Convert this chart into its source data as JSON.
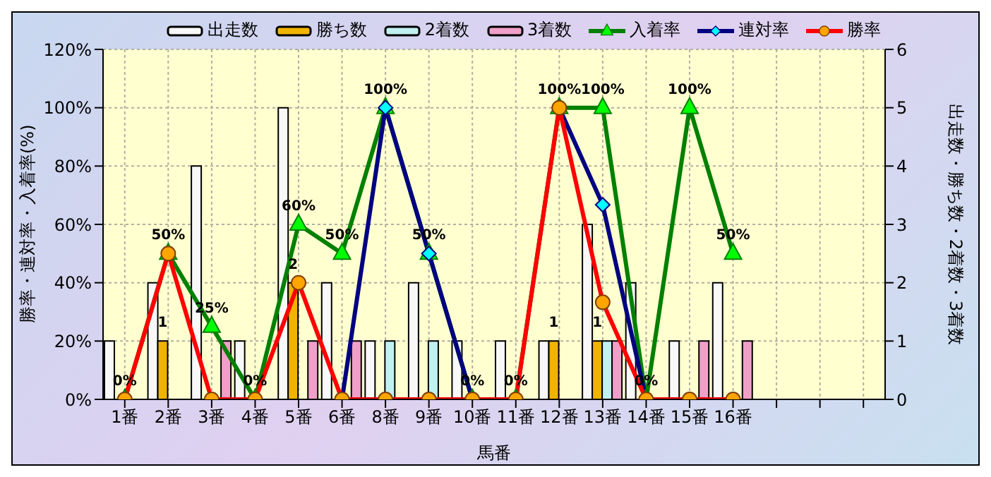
{
  "chart_data": {
    "type": "bar",
    "xlabel": "馬番",
    "ylabel": "勝率・連対率・入着率(%)",
    "y2label": "出走数・勝ち数・2着数・3着数",
    "categories": [
      "1番",
      "2番",
      "3番",
      "4番",
      "5番",
      "6番",
      "8番",
      "9番",
      "10番",
      "11番",
      "12番",
      "13番",
      "14番",
      "15番",
      "16番",
      null,
      null,
      null
    ],
    "ylim": [
      0,
      120
    ],
    "yticks": [
      {
        "value": 0,
        "label": "0%"
      },
      {
        "value": 20,
        "label": "20%"
      },
      {
        "value": 40,
        "label": "40%"
      },
      {
        "value": 60,
        "label": "60%"
      },
      {
        "value": 80,
        "label": "80%"
      },
      {
        "value": 100,
        "label": "100%"
      },
      {
        "value": 120,
        "label": "120%"
      }
    ],
    "y2lim": [
      0,
      6
    ],
    "y2ticks": [
      0,
      1,
      2,
      3,
      4,
      5,
      6
    ],
    "grid": true,
    "legend": "top",
    "series": [
      {
        "name": "出走数",
        "axis": "y2",
        "color": "#f8f8f8",
        "values": [
          1,
          2,
          4,
          1,
          5,
          2,
          1,
          2,
          1,
          1,
          1,
          3,
          2,
          1,
          2,
          null,
          null,
          null
        ]
      },
      {
        "name": "勝ち数",
        "axis": "y2",
        "color": "#f0b400",
        "values": [
          0,
          1,
          0,
          0,
          2,
          0,
          0,
          0,
          0,
          0,
          1,
          1,
          0,
          0,
          0,
          null,
          null,
          null
        ],
        "value_labels": [
          null,
          "1",
          null,
          null,
          "2",
          null,
          null,
          null,
          null,
          null,
          "1",
          "1",
          null,
          null,
          null,
          null,
          null,
          null
        ]
      },
      {
        "name": "2着数",
        "axis": "y2",
        "color": "#c0f0f0",
        "values": [
          0,
          0,
          0,
          0,
          0,
          0,
          1,
          1,
          0,
          0,
          0,
          1,
          0,
          0,
          0,
          null,
          null,
          null
        ]
      },
      {
        "name": "3着数",
        "axis": "y2",
        "color": "#f0a0c8",
        "values": [
          0,
          0,
          1,
          0,
          1,
          1,
          0,
          0,
          0,
          0,
          0,
          1,
          0,
          1,
          1,
          null,
          null,
          null
        ]
      },
      {
        "name": "入着率",
        "type": "line",
        "axis": "y",
        "color": "#008000",
        "marker": "triangle",
        "values": [
          0,
          50,
          25,
          0,
          60,
          50,
          100,
          50,
          0,
          0,
          100,
          100,
          0,
          100,
          50,
          null,
          null,
          null
        ],
        "value_labels": [
          "0%",
          "50%",
          "25%",
          "0%",
          "60%",
          "50%",
          "100%",
          "50%",
          "0%",
          "0%",
          "100%",
          "100%",
          "0%",
          "100%",
          "50%",
          null,
          null,
          null
        ]
      },
      {
        "name": "連対率",
        "type": "line",
        "axis": "y",
        "color": "#000080",
        "marker": "diamond",
        "values": [
          null,
          null,
          null,
          null,
          null,
          0,
          100,
          50,
          0,
          null,
          100,
          66.7,
          0,
          null,
          null,
          null,
          null,
          null
        ]
      },
      {
        "name": "勝率",
        "type": "line",
        "axis": "y",
        "color": "#ff0000",
        "marker": "circle",
        "values": [
          0,
          50,
          0,
          0,
          40,
          0,
          0,
          0,
          0,
          0,
          100,
          33.3,
          0,
          0,
          0,
          null,
          null,
          null
        ]
      }
    ]
  }
}
